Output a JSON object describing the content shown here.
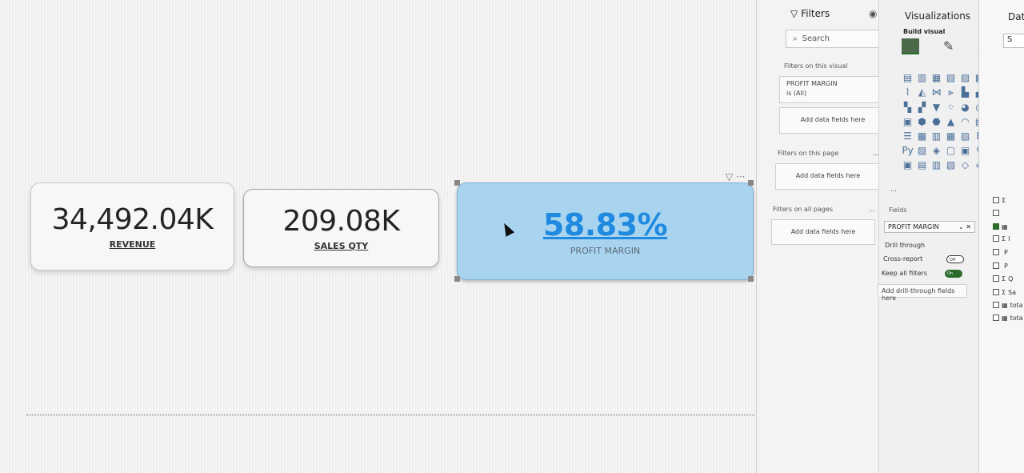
{
  "cards": {
    "revenue": {
      "value": "34,492.04K",
      "label": "REVENUE"
    },
    "sales_qty": {
      "value": "209.08K",
      "label": "SALES QTY"
    },
    "profit_margin": {
      "value": "58.83%",
      "label": "PROFIT MARGIN"
    }
  },
  "card_toolbar": "▽ ···",
  "filters": {
    "title": "Filters",
    "search_placeholder": "Search",
    "on_visual_label": "Filters on this visual",
    "visual_filter": {
      "field": "PROFIT MARGIN",
      "state": "is (All)"
    },
    "add_fields": "Add data fields here",
    "on_page_label": "Filters on this page",
    "all_pages_label": "Filters on all pages",
    "more": "..."
  },
  "visualizations": {
    "title": "Visualizations",
    "build_visual": "Build visual",
    "more": "...",
    "fields_label": "Fields",
    "field_well": "PROFIT MARGIN",
    "drill_through": "Drill through",
    "cross_report": "Cross-report",
    "cross_report_state": "Off",
    "keep_all_filters": "Keep all filters",
    "keep_all_state": "On",
    "drill_placeholder": "Add drill-through fields here",
    "gallery": [
      "▤",
      "▥",
      "▦",
      "▧",
      "▨",
      "▩",
      "⌇",
      "◭",
      "⋈",
      "⫸",
      "▙",
      "▟",
      "▚",
      "▞",
      "▼",
      "⁘",
      "◕",
      "◎",
      "▣",
      "⬢",
      "⬣",
      "▲",
      "◠",
      "▤",
      "☰",
      "▦",
      "▥",
      "▦",
      "▧",
      "R",
      "Py",
      "▨",
      "◈",
      "▢",
      "▣",
      "♀",
      "▣",
      "▤",
      "▥",
      "▧",
      "◇",
      "◈"
    ]
  },
  "data": {
    "title": "Data",
    "search_placeholder": "S",
    "items": [
      {
        "icon": "Σ",
        "text": ""
      },
      {
        "icon": "",
        "text": ""
      },
      {
        "icon": "▦",
        "text": ""
      },
      {
        "icon": "Σ",
        "text": "I"
      },
      {
        "icon": "",
        "text": "P"
      },
      {
        "icon": "",
        "text": "P"
      },
      {
        "icon": "Σ",
        "text": "Q"
      },
      {
        "icon": "Σ",
        "text": "Sa"
      },
      {
        "icon": "▦",
        "text": "tota"
      },
      {
        "icon": "▦",
        "text": "tota"
      }
    ]
  }
}
